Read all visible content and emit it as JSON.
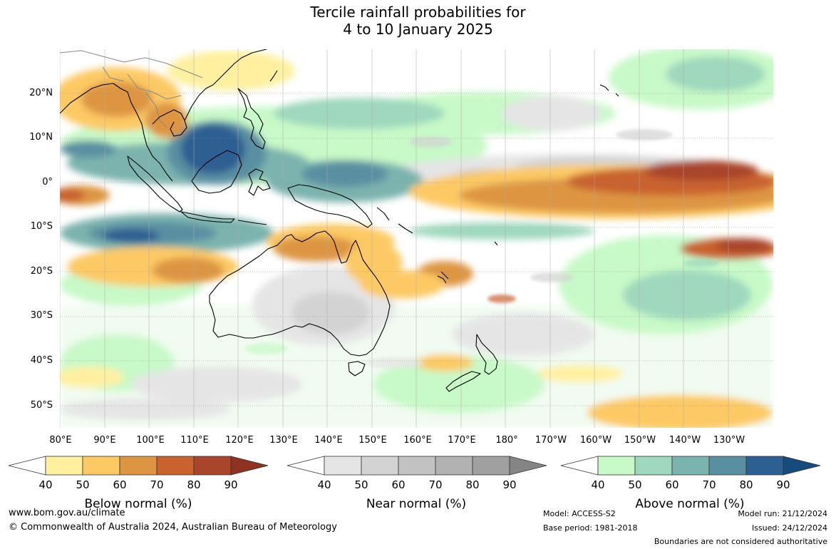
{
  "title": {
    "line1": "Tercile rainfall probabilities for",
    "line2": "4 to 10 January 2025"
  },
  "map": {
    "lat_labels": [
      "20°N",
      "10°N",
      "0°",
      "10°S",
      "20°S",
      "30°S",
      "40°S",
      "50°S"
    ],
    "lon_labels": [
      "80°E",
      "90°E",
      "100°E",
      "110°E",
      "120°E",
      "130°E",
      "140°E",
      "150°E",
      "160°E",
      "170°E",
      "180°",
      "170°W",
      "160°W",
      "150°W",
      "140°W",
      "130°W"
    ],
    "features": [
      "coastlines",
      "country boundaries",
      "lat/lon gridlines"
    ]
  },
  "legends": [
    {
      "title": "Below normal (%)",
      "ticks": [
        "40",
        "50",
        "60",
        "70",
        "80",
        "90"
      ],
      "colors": [
        "#ffffff",
        "#fff0a0",
        "#fdc965",
        "#dd9543",
        "#c9622f",
        "#a8452a",
        "#8e3322"
      ]
    },
    {
      "title": "Near normal (%)",
      "ticks": [
        "40",
        "50",
        "60",
        "70",
        "80",
        "90"
      ],
      "colors": [
        "#ffffff",
        "#e5e5e5",
        "#d3d3d3",
        "#c2c2c2",
        "#b2b2b2",
        "#a0a0a0",
        "#858585"
      ]
    },
    {
      "title": "Above normal (%)",
      "ticks": [
        "40",
        "50",
        "60",
        "70",
        "80",
        "90"
      ],
      "colors": [
        "#ffffff",
        "#c8f9c8",
        "#9fd8bd",
        "#7bb3ae",
        "#5a8fa2",
        "#2d5f92",
        "#174a7d"
      ]
    }
  ],
  "footer": {
    "website": "www.bom.gov.au/climate",
    "copyright": "© Commonwealth of Australia 2024, Australian Bureau of Meteorology",
    "model": "Model: ACCESS-S2",
    "base_period": "Base period: 1981-2018",
    "model_run": "Model run: 21/12/2024",
    "issued": "Issued: 24/12/2024",
    "disclaimer": "Boundaries are not considered authoritative"
  }
}
